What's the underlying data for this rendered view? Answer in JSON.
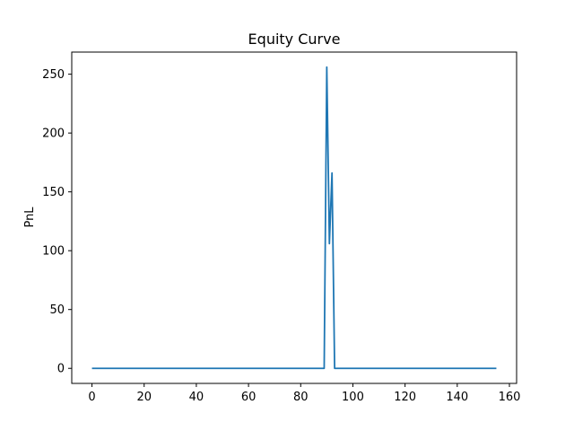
{
  "chart_data": {
    "type": "line",
    "title": "Equity Curve",
    "xlabel": "",
    "ylabel": "PnL",
    "xlim": [
      -7.75,
      162.75
    ],
    "ylim": [
      -12.8,
      268.8
    ],
    "xticks": [
      0,
      20,
      40,
      60,
      80,
      100,
      120,
      140,
      160
    ],
    "yticks": [
      0,
      50,
      100,
      150,
      200,
      250
    ],
    "grid": false,
    "line_color": "#1f77b4",
    "series": [
      {
        "x": [
          0,
          89,
          90,
          91,
          92,
          93,
          155
        ],
        "y": [
          0,
          0,
          256,
          106,
          166,
          0,
          0
        ]
      }
    ]
  }
}
